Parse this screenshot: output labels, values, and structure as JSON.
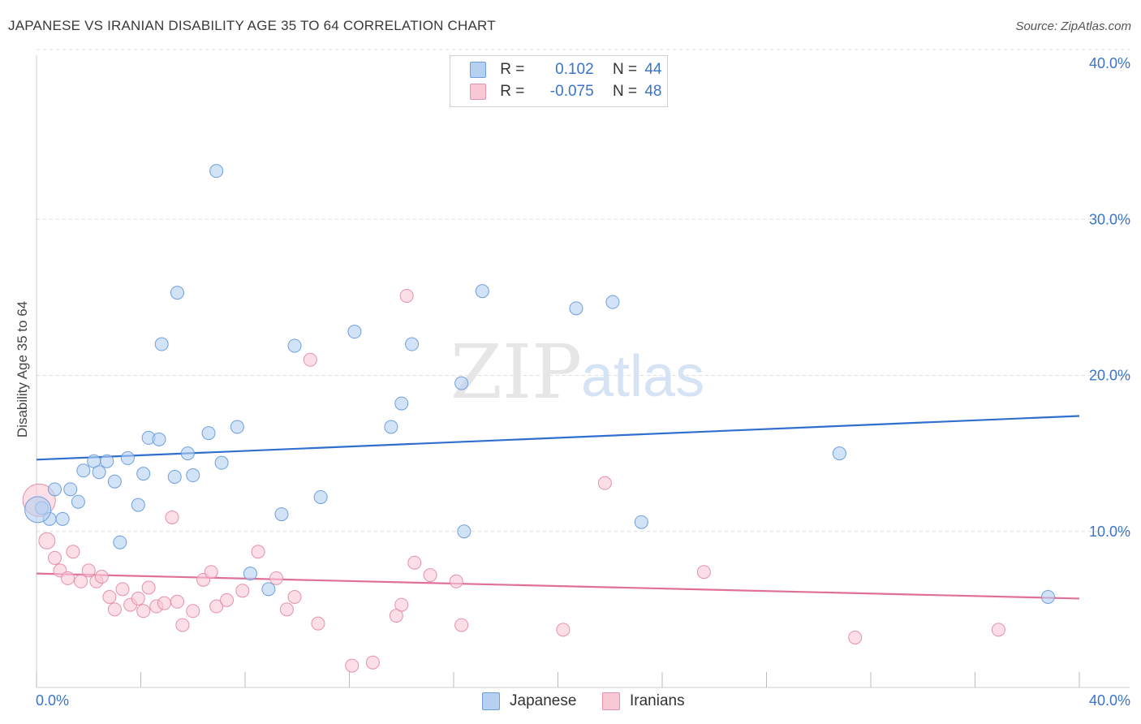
{
  "header": {
    "title": "JAPANESE VS IRANIAN DISABILITY AGE 35 TO 64 CORRELATION CHART",
    "source": "Source: ZipAtlas.com"
  },
  "legend": {
    "rows": [
      {
        "r_label": "R =",
        "r_value": "0.102",
        "n_label": "N =",
        "n_value": "44"
      },
      {
        "r_label": "R =",
        "r_value": "-0.075",
        "n_label": "N =",
        "n_value": "48"
      }
    ]
  },
  "bottom_legend": {
    "japanese": "Japanese",
    "iranians": "Iranians"
  },
  "watermark": {
    "zip": "ZIP",
    "atlas": "atlas"
  },
  "colors": {
    "blue_fill": "#b6d0f2",
    "blue_stroke": "#6f9fdc",
    "blue_line": "#2f6fcf",
    "pink_fill": "#f8c8d5",
    "pink_stroke": "#e591ab",
    "pink_line": "#e0709a",
    "tick_text": "#3a74c8"
  },
  "chart_data": {
    "type": "scatter",
    "title": "JAPANESE VS IRANIAN DISABILITY AGE 35 TO 64 CORRELATION CHART",
    "xlabel": "",
    "ylabel": "Disability Age 35 to 64",
    "xlim": [
      0,
      40
    ],
    "ylim": [
      0,
      40
    ],
    "x_tick_labels": [
      "0.0%",
      "40.0%"
    ],
    "y_ticks": [
      10,
      20,
      30,
      40
    ],
    "y_tick_labels": [
      "10.0%",
      "20.0%",
      "30.0%",
      "40.0%"
    ],
    "series": [
      {
        "name": "Japanese",
        "r": 0.102,
        "n": 44,
        "trend": [
          [
            0,
            14.6
          ],
          [
            40,
            17.4
          ]
        ],
        "points": [
          [
            0.2,
            11.5
          ],
          [
            0.5,
            10.8
          ],
          [
            0.7,
            12.7
          ],
          [
            1.0,
            10.8
          ],
          [
            1.3,
            12.7
          ],
          [
            1.6,
            11.9
          ],
          [
            1.8,
            13.9
          ],
          [
            2.2,
            14.5
          ],
          [
            2.4,
            13.8
          ],
          [
            2.7,
            14.5
          ],
          [
            3.0,
            13.2
          ],
          [
            3.2,
            9.3
          ],
          [
            3.5,
            14.7
          ],
          [
            3.9,
            11.7
          ],
          [
            4.1,
            13.7
          ],
          [
            4.3,
            16.0
          ],
          [
            4.7,
            15.9
          ],
          [
            4.8,
            22.0
          ],
          [
            5.3,
            13.5
          ],
          [
            5.4,
            25.3
          ],
          [
            5.8,
            15.0
          ],
          [
            6.0,
            13.6
          ],
          [
            6.6,
            16.3
          ],
          [
            6.9,
            33.1
          ],
          [
            7.1,
            14.4
          ],
          [
            7.7,
            16.7
          ],
          [
            8.2,
            7.3
          ],
          [
            8.9,
            6.3
          ],
          [
            9.4,
            11.1
          ],
          [
            9.9,
            21.9
          ],
          [
            10.9,
            12.2
          ],
          [
            12.2,
            22.8
          ],
          [
            13.6,
            16.7
          ],
          [
            14.0,
            18.2
          ],
          [
            14.4,
            22.0
          ],
          [
            16.3,
            19.5
          ],
          [
            16.4,
            10.0
          ],
          [
            17.1,
            25.4
          ],
          [
            20.7,
            24.3
          ],
          [
            22.1,
            24.7
          ],
          [
            23.2,
            10.6
          ],
          [
            30.8,
            15.0
          ],
          [
            38.8,
            5.8
          ],
          [
            0.05,
            11.4
          ]
        ]
      },
      {
        "name": "Iranians",
        "r": -0.075,
        "n": 48,
        "trend": [
          [
            0,
            7.3
          ],
          [
            40,
            5.7
          ]
        ],
        "points": [
          [
            0.1,
            12.0
          ],
          [
            0.4,
            9.4
          ],
          [
            0.7,
            8.3
          ],
          [
            0.9,
            7.5
          ],
          [
            1.2,
            7.0
          ],
          [
            1.4,
            8.7
          ],
          [
            1.7,
            6.8
          ],
          [
            2.0,
            7.5
          ],
          [
            2.3,
            6.8
          ],
          [
            2.5,
            7.1
          ],
          [
            2.8,
            5.8
          ],
          [
            3.0,
            5.0
          ],
          [
            3.3,
            6.3
          ],
          [
            3.6,
            5.3
          ],
          [
            3.9,
            5.7
          ],
          [
            4.1,
            4.9
          ],
          [
            4.3,
            6.4
          ],
          [
            4.6,
            5.2
          ],
          [
            4.9,
            5.4
          ],
          [
            5.2,
            10.9
          ],
          [
            5.4,
            5.5
          ],
          [
            5.6,
            4.0
          ],
          [
            6.0,
            4.9
          ],
          [
            6.4,
            6.9
          ],
          [
            6.7,
            7.4
          ],
          [
            6.9,
            5.2
          ],
          [
            7.3,
            5.6
          ],
          [
            7.9,
            6.2
          ],
          [
            8.5,
            8.7
          ],
          [
            9.2,
            7.0
          ],
          [
            9.6,
            5.0
          ],
          [
            9.9,
            5.8
          ],
          [
            10.5,
            21.0
          ],
          [
            10.8,
            4.1
          ],
          [
            12.1,
            1.4
          ],
          [
            12.9,
            1.6
          ],
          [
            13.8,
            4.6
          ],
          [
            14.0,
            5.3
          ],
          [
            14.2,
            25.1
          ],
          [
            14.5,
            8.0
          ],
          [
            15.1,
            7.2
          ],
          [
            16.1,
            6.8
          ],
          [
            16.3,
            4.0
          ],
          [
            20.2,
            3.7
          ],
          [
            21.8,
            13.1
          ],
          [
            25.6,
            7.4
          ],
          [
            31.4,
            3.2
          ],
          [
            36.9,
            3.7
          ]
        ]
      }
    ]
  }
}
